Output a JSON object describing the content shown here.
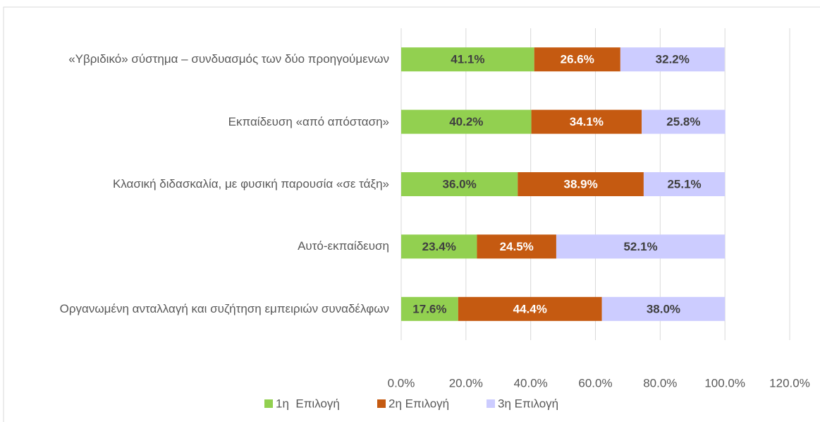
{
  "chart_data": {
    "type": "stacked_barh",
    "categories": [
      "«Υβριδικό» σύστημα – συνδυασμός των δύο προηγούμενων",
      "Εκπαίδευση «από απόσταση»",
      "Κλασική διδασκαλία, με φυσική παρουσία «σε τάξη»",
      "Αυτό-εκπαίδευση",
      "Οργανωμένη ανταλλαγή και συζήτηση εμπειριών συναδέλφων"
    ],
    "series": [
      {
        "name": "1η  Επιλογή",
        "color": "#92d050",
        "values": [
          41.1,
          40.2,
          36.0,
          23.4,
          17.6
        ],
        "value_labels": [
          "41.1%",
          "40.2%",
          "36.0%",
          "23.4%",
          "17.6%"
        ]
      },
      {
        "name": "2η Επιλογή",
        "color": "#c55a11",
        "values": [
          26.6,
          34.1,
          38.9,
          24.5,
          44.4
        ],
        "value_labels": [
          "26.6%",
          "34.1%",
          "38.9%",
          "24.5%",
          "44.4%"
        ]
      },
      {
        "name": "3η Επιλογή",
        "color": "#ccccff",
        "values": [
          32.2,
          25.8,
          25.1,
          52.1,
          38.0
        ],
        "value_labels": [
          "32.2%",
          "25.8%",
          "25.1%",
          "52.1%",
          "38.0%"
        ]
      }
    ],
    "xlim": [
      0,
      120
    ],
    "xticks": [
      {
        "value": 0,
        "label": "0.0%"
      },
      {
        "value": 20,
        "label": "20.0%"
      },
      {
        "value": 40,
        "label": "40.0%"
      },
      {
        "value": 60,
        "label": "60.0%"
      },
      {
        "value": 80,
        "label": "80.0%"
      },
      {
        "value": 100,
        "label": "100.0%"
      },
      {
        "value": 120,
        "label": "120.0%"
      }
    ],
    "grid": true,
    "legend": "bottom"
  }
}
